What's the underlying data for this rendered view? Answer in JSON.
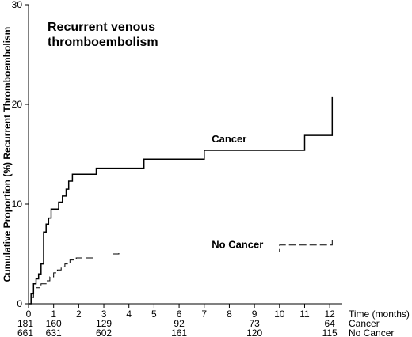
{
  "chart_data": {
    "type": "line",
    "title_lines": [
      "Recurrent venous",
      "thromboembolism"
    ],
    "ylabel": "Cumulative Proportion (%) Recurrent Thromboembolism",
    "xlabel": "Time (months)",
    "xlim": [
      0,
      12.5
    ],
    "ylim": [
      0,
      30
    ],
    "x_ticks": [
      0,
      1,
      2,
      3,
      4,
      5,
      6,
      7,
      8,
      9,
      10,
      11,
      12
    ],
    "x_tick_labels": [
      "0",
      "1",
      "2",
      "3",
      "4",
      "5",
      "6",
      "7",
      "8",
      "9",
      "10",
      "11",
      "12"
    ],
    "y_ticks": [
      0,
      10,
      20,
      30
    ],
    "y_tick_labels": [
      "0",
      "10",
      "20",
      "30"
    ],
    "grid": false,
    "series": [
      {
        "name": "Cancer",
        "style": "solid",
        "step_points": [
          [
            0,
            0
          ],
          [
            0.1,
            1
          ],
          [
            0.2,
            2
          ],
          [
            0.3,
            2.5
          ],
          [
            0.4,
            3
          ],
          [
            0.5,
            4
          ],
          [
            0.6,
            7.2
          ],
          [
            0.7,
            8
          ],
          [
            0.8,
            8.6
          ],
          [
            0.9,
            9.5
          ],
          [
            1.2,
            10.2
          ],
          [
            1.35,
            10.8
          ],
          [
            1.5,
            11.5
          ],
          [
            1.6,
            12.3
          ],
          [
            1.75,
            13
          ],
          [
            2.7,
            13.6
          ],
          [
            4.6,
            14.5
          ],
          [
            7.0,
            15.4
          ],
          [
            11.0,
            16.9
          ],
          [
            12.1,
            20.8
          ]
        ]
      },
      {
        "name": "No Cancer",
        "style": "dashed",
        "step_points": [
          [
            0,
            0
          ],
          [
            0.1,
            0.6
          ],
          [
            0.2,
            1.2
          ],
          [
            0.3,
            1.6
          ],
          [
            0.5,
            2.0
          ],
          [
            0.7,
            2.3
          ],
          [
            0.85,
            2.7
          ],
          [
            1.0,
            3.1
          ],
          [
            1.15,
            3.4
          ],
          [
            1.3,
            3.7
          ],
          [
            1.45,
            4.0
          ],
          [
            1.65,
            4.4
          ],
          [
            1.9,
            4.6
          ],
          [
            2.6,
            4.8
          ],
          [
            3.3,
            5.0
          ],
          [
            3.6,
            5.2
          ],
          [
            10.0,
            5.9
          ],
          [
            12.1,
            6.7
          ]
        ]
      }
    ],
    "risk_table": {
      "time_points": [
        0,
        1,
        3,
        6,
        9,
        12
      ],
      "rows": [
        {
          "label": "Cancer",
          "values": [
            "181",
            "160",
            "129",
            "92",
            "73",
            "64"
          ]
        },
        {
          "label": "No Cancer",
          "values": [
            "661",
            "631",
            "602",
            "161",
            "120",
            "115"
          ]
        }
      ]
    }
  }
}
